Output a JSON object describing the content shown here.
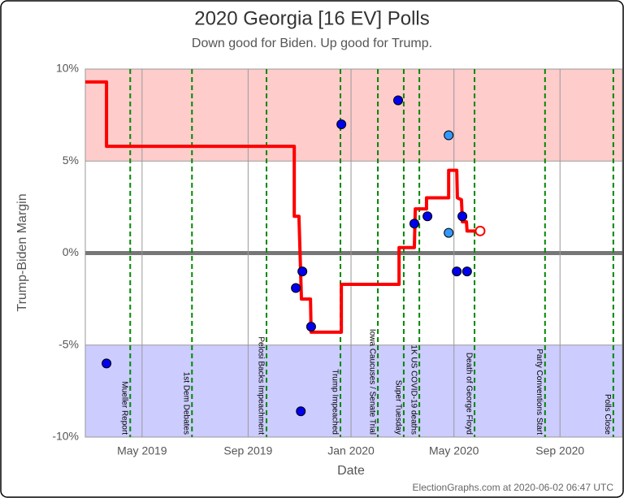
{
  "chart_data": {
    "type": "line",
    "title": "2020 Georgia [16 EV] Polls",
    "subtitle": "Down good for Biden. Up good for Trump.",
    "x_label": "Date",
    "y_label": "Trump-Biden Margin",
    "footer": "ElectionGraphs.com at 2020-06-02 06:47 UTC",
    "xlim": [
      2019.148,
      2020.87
    ],
    "xticks": [
      {
        "value": 2019.33,
        "label": "May 2019"
      },
      {
        "value": 2019.67,
        "label": "Sep 2019"
      },
      {
        "value": 2020.0,
        "label": "Jan 2020"
      },
      {
        "value": 2020.33,
        "label": "May 2020"
      },
      {
        "value": 2020.67,
        "label": "Sep 2020"
      }
    ],
    "ylim": [
      -10,
      10
    ],
    "yticks": [
      {
        "value": 10,
        "label": "10%"
      },
      {
        "value": 5,
        "label": "5%"
      },
      {
        "value": 0,
        "label": "0%"
      },
      {
        "value": -5,
        "label": "-5%"
      },
      {
        "value": -10,
        "label": "-10%"
      }
    ],
    "grid": true,
    "bands": [
      {
        "from": 5,
        "to": 10,
        "color": "#ffcccc"
      },
      {
        "from": -10,
        "to": -5,
        "color": "#ccccff"
      }
    ],
    "series": [
      {
        "color": "#ff0000",
        "x": [
          2019.148,
          2019.216,
          2019.216,
          2019.818,
          2019.818,
          2019.833,
          2019.841,
          2019.87,
          2019.872,
          2019.969,
          2019.969,
          2020.154,
          2020.154,
          2020.203,
          2020.206,
          2020.242,
          2020.242,
          2020.313,
          2020.313,
          2020.339,
          2020.341,
          2020.354,
          2020.357,
          2020.37,
          2020.372,
          2020.414
        ],
        "values": [
          9.3,
          9.3,
          5.8,
          5.8,
          2.0,
          2.0,
          -2.5,
          -2.5,
          -4.3,
          -4.3,
          -1.7,
          -1.7,
          0.3,
          0.3,
          2.4,
          2.4,
          3.0,
          3.0,
          4.5,
          4.5,
          3.0,
          2.9,
          1.7,
          1.7,
          1.2,
          1.2
        ]
      }
    ],
    "polls": {
      "x": [
        2019.216,
        2019.823,
        2019.844,
        2019.872,
        2019.839,
        2019.969,
        2020.151,
        2020.203,
        2020.245,
        2020.313,
        2020.313,
        2020.339,
        2020.357,
        2020.372
      ],
      "values": [
        -6.0,
        -1.9,
        -1.0,
        -4.0,
        -8.6,
        7.0,
        8.3,
        1.6,
        2.0,
        6.4,
        1.1,
        -1.0,
        2.0,
        -1.0
      ],
      "colors": [
        "#0000ee",
        "#0000ee",
        "#0000ee",
        "#0000ee",
        "#0000ee",
        "#0000ee",
        "#0000ee",
        "#0000ee",
        "#0000ee",
        "#3399ff",
        "#3399ff",
        "#0000ee",
        "#0000ee",
        "#0000ee"
      ]
    },
    "events": [
      {
        "x": 2019.292,
        "label": "Mueller Report"
      },
      {
        "x": 2019.49,
        "label": "1st Dem Debates"
      },
      {
        "x": 2019.729,
        "label": "Pelosi Backs Impeachment"
      },
      {
        "x": 2019.966,
        "label": "Trump Impeached"
      },
      {
        "x": 2020.086,
        "label": "Iowa Caucuses / Senate Trial"
      },
      {
        "x": 2020.169,
        "label": "Super Tuesday"
      },
      {
        "x": 2020.219,
        "label": "1K US COVID-19 deaths"
      },
      {
        "x": 2020.396,
        "label": "Death of George Floyd"
      },
      {
        "x": 2020.622,
        "label": "Party Conventions Start"
      },
      {
        "x": 2020.841,
        "label": "Polls Close"
      }
    ],
    "event_color": "#008800"
  }
}
